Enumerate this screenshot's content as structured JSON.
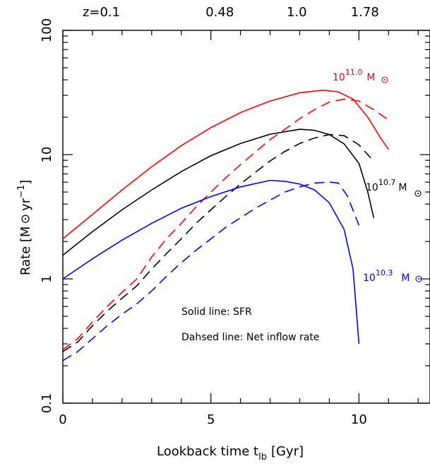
{
  "chart_data": {
    "type": "line",
    "xlabel": "Lookback time t",
    "xlabel_sub": "lb",
    "xlabel_unit": "[Gyr]",
    "ylabel": "Rate [M",
    "ylabel_unit_tail": " yr",
    "ylabel_exp": "−1",
    "ylabel_close": "]",
    "xlim": [
      0,
      12.4
    ],
    "ylim": [
      0.1,
      100
    ],
    "yscale": "log",
    "x_ticks": [
      {
        "value": 0,
        "label": "0"
      },
      {
        "value": 5,
        "label": "5"
      },
      {
        "value": 10,
        "label": "10"
      }
    ],
    "y_ticks": [
      {
        "value": 0.1,
        "label": "0.1"
      },
      {
        "value": 1,
        "label": "1"
      },
      {
        "value": 10,
        "label": "10"
      },
      {
        "value": 100,
        "label": "100"
      }
    ],
    "top_axis": [
      {
        "x": 1.3,
        "label": "z=0.1"
      },
      {
        "x": 5.3,
        "label": "0.48"
      },
      {
        "x": 7.9,
        "label": "1.0"
      },
      {
        "x": 10.2,
        "label": "1.78"
      }
    ],
    "annotations": {
      "solid": "Solid line: SFR",
      "dashed": "Dahsed line: Net inflow rate"
    },
    "mass_labels": [
      {
        "base": "10",
        "exp": "11.0",
        "unit": "M",
        "color": "#ff0000"
      },
      {
        "base": "10",
        "exp": "10.7",
        "unit": "M",
        "color": "#000000"
      },
      {
        "base": "10",
        "exp": "10.3",
        "unit": "M",
        "color": "#0000ff"
      }
    ],
    "series": [
      {
        "color": "#ff0000",
        "dash": false,
        "points": [
          [
            0,
            2.1
          ],
          [
            1,
            3.3
          ],
          [
            2,
            5.2
          ],
          [
            3,
            8.0
          ],
          [
            4,
            11.8
          ],
          [
            5,
            16.5
          ],
          [
            6,
            21.8
          ],
          [
            7,
            27
          ],
          [
            8,
            31.5
          ],
          [
            8.8,
            33
          ],
          [
            9.3,
            32
          ],
          [
            9.8,
            28
          ],
          [
            10.3,
            20
          ],
          [
            10.7,
            14
          ],
          [
            11,
            11
          ]
        ]
      },
      {
        "color": "#ff0000",
        "dash": true,
        "points": [
          [
            0,
            0.27
          ],
          [
            0.5,
            0.33
          ],
          [
            1,
            0.45
          ],
          [
            1.5,
            0.6
          ],
          [
            2,
            0.78
          ],
          [
            2.5,
            1.0
          ],
          [
            3,
            1.5
          ],
          [
            3.5,
            2.1
          ],
          [
            4,
            2.8
          ],
          [
            4.5,
            3.8
          ],
          [
            5,
            5.0
          ],
          [
            5.5,
            6.5
          ],
          [
            6,
            8.3
          ],
          [
            6.5,
            10.5
          ],
          [
            7,
            13.2
          ],
          [
            7.5,
            16
          ],
          [
            8,
            19.5
          ],
          [
            8.5,
            23
          ],
          [
            9,
            26.5
          ],
          [
            9.5,
            28
          ],
          [
            10,
            27
          ],
          [
            10.5,
            23
          ],
          [
            11,
            19
          ]
        ]
      },
      {
        "color": "#000000",
        "dash": false,
        "points": [
          [
            0,
            1.55
          ],
          [
            1,
            2.4
          ],
          [
            2,
            3.6
          ],
          [
            3,
            5.2
          ],
          [
            4,
            7.3
          ],
          [
            5,
            9.8
          ],
          [
            6,
            12.3
          ],
          [
            7,
            14.6
          ],
          [
            8,
            16
          ],
          [
            8.5,
            15.7
          ],
          [
            9,
            14.5
          ],
          [
            9.5,
            12.2
          ],
          [
            10,
            8.5
          ],
          [
            10.3,
            5
          ],
          [
            10.5,
            3.1
          ]
        ]
      },
      {
        "color": "#000000",
        "dash": true,
        "points": [
          [
            0,
            0.26
          ],
          [
            0.5,
            0.31
          ],
          [
            1,
            0.42
          ],
          [
            1.5,
            0.55
          ],
          [
            2,
            0.7
          ],
          [
            2.5,
            0.88
          ],
          [
            3,
            1.2
          ],
          [
            3.5,
            1.6
          ],
          [
            4,
            2.1
          ],
          [
            4.5,
            2.8
          ],
          [
            5,
            3.6
          ],
          [
            5.5,
            4.6
          ],
          [
            6,
            5.8
          ],
          [
            6.5,
            7.2
          ],
          [
            7,
            8.9
          ],
          [
            7.5,
            10.6
          ],
          [
            8,
            12.3
          ],
          [
            8.5,
            13.6
          ],
          [
            9,
            14.5
          ],
          [
            9.5,
            14.2
          ],
          [
            10,
            12
          ],
          [
            10.4,
            9.4
          ]
        ]
      },
      {
        "color": "#0000ff",
        "dash": false,
        "points": [
          [
            0,
            1.0
          ],
          [
            1,
            1.45
          ],
          [
            2,
            2.05
          ],
          [
            3,
            2.8
          ],
          [
            4,
            3.7
          ],
          [
            5,
            4.6
          ],
          [
            6,
            5.5
          ],
          [
            7,
            6.2
          ],
          [
            7.5,
            6.1
          ],
          [
            8,
            5.8
          ],
          [
            8.5,
            5.2
          ],
          [
            9,
            4.1
          ],
          [
            9.5,
            2.5
          ],
          [
            9.8,
            1.2
          ],
          [
            10,
            0.3
          ]
        ]
      },
      {
        "color": "#0000ff",
        "dash": true,
        "points": [
          [
            0,
            0.22
          ],
          [
            0.5,
            0.26
          ],
          [
            1,
            0.33
          ],
          [
            1.5,
            0.42
          ],
          [
            2,
            0.52
          ],
          [
            2.5,
            0.63
          ],
          [
            3,
            0.8
          ],
          [
            3.5,
            1.05
          ],
          [
            4,
            1.35
          ],
          [
            4.5,
            1.7
          ],
          [
            5,
            2.1
          ],
          [
            5.5,
            2.6
          ],
          [
            6,
            3.1
          ],
          [
            6.5,
            3.7
          ],
          [
            7,
            4.3
          ],
          [
            7.5,
            5.0
          ],
          [
            8,
            5.5
          ],
          [
            8.5,
            5.9
          ],
          [
            9,
            6.0
          ],
          [
            9.3,
            5.9
          ],
          [
            9.6,
            4.7
          ],
          [
            10,
            2.7
          ]
        ]
      }
    ]
  }
}
